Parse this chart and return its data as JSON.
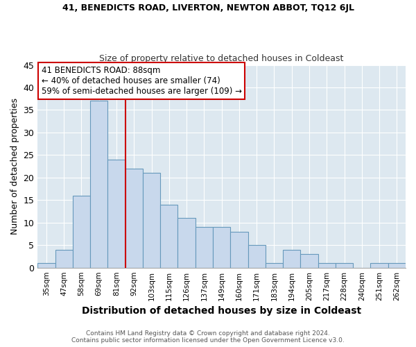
{
  "title1": "41, BENEDICTS ROAD, LIVERTON, NEWTON ABBOT, TQ12 6JL",
  "title2": "Size of property relative to detached houses in Coldeast",
  "xlabel": "Distribution of detached houses by size in Coldeast",
  "ylabel": "Number of detached properties",
  "categories": [
    "35sqm",
    "47sqm",
    "58sqm",
    "69sqm",
    "81sqm",
    "92sqm",
    "103sqm",
    "115sqm",
    "126sqm",
    "137sqm",
    "149sqm",
    "160sqm",
    "171sqm",
    "183sqm",
    "194sqm",
    "205sqm",
    "217sqm",
    "228sqm",
    "240sqm",
    "251sqm",
    "262sqm"
  ],
  "values": [
    1,
    4,
    16,
    37,
    24,
    22,
    21,
    14,
    11,
    9,
    9,
    8,
    5,
    1,
    4,
    3,
    1,
    1,
    0,
    1,
    1
  ],
  "bar_color": "#c8d8ec",
  "bar_edge_color": "#6699bb",
  "annotation_box_text": "41 BENEDICTS ROAD: 88sqm\n← 40% of detached houses are smaller (74)\n59% of semi-detached houses are larger (109) →",
  "vline_x_index": 4.5,
  "vline_color": "#cc0000",
  "ylim": [
    0,
    45
  ],
  "yticks": [
    0,
    5,
    10,
    15,
    20,
    25,
    30,
    35,
    40,
    45
  ],
  "footnote": "Contains HM Land Registry data © Crown copyright and database right 2024.\nContains public sector information licensed under the Open Government Licence v3.0.",
  "bg_color": "#ffffff",
  "plot_bg_color": "#dde8f0",
  "grid_color": "#ffffff",
  "title1_fontsize": 9,
  "title2_fontsize": 9
}
